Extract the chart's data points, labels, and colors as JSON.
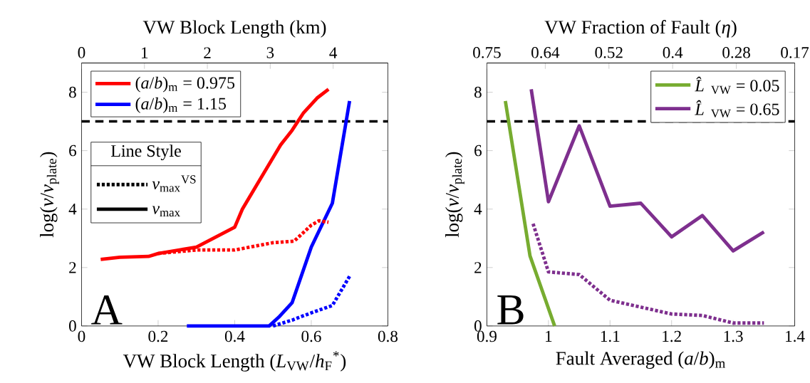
{
  "chart_data": [
    {
      "type": "line",
      "xlabel": "VW Block Length (*L*$_{VW}$/*h*$_{F}$$^{*}$)",
      "ylabel": "log(*v*/*v*$_{plate}$)",
      "x2label": "VW Block Length (km)",
      "xlim": [
        0,
        0.8
      ],
      "xticks": [
        0,
        0.2,
        0.4,
        0.6,
        0.8
      ],
      "ylim": [
        0,
        9
      ],
      "yticks": [
        0,
        2,
        4,
        6,
        8
      ],
      "x2lim": [
        0,
        4.87
      ],
      "x2ticks": [
        0,
        1,
        2,
        3,
        4
      ],
      "legend": "top left",
      "marker": "none",
      "grid": false,
      "ref_lines": [
        {
          "axis": "y",
          "value": 7,
          "color": "#000000",
          "line_style": "dashed"
        }
      ],
      "annotations": [
        "A",
        "Line Style",
        "*v*$_{max}$$^{VS}$",
        "*v*$_{max}$"
      ],
      "series": [
        {
          "name": "(*a*/*b*)$_{m}$ = 0.975",
          "color": "#ff0000",
          "line_style": "solid",
          "x": [
            0.05,
            0.1,
            0.175,
            0.2,
            0.3,
            0.4,
            0.42,
            0.52,
            0.55,
            0.58,
            0.615,
            0.645
          ],
          "values": [
            2.28,
            2.35,
            2.38,
            2.48,
            2.7,
            3.38,
            4.0,
            6.2,
            6.7,
            7.3,
            7.8,
            8.1
          ]
        },
        {
          "name": "(*a*/*b*)$_{m}$ = 1.15",
          "color": "#0000ff",
          "line_style": "solid",
          "x": [
            0.275,
            0.49,
            0.515,
            0.55,
            0.6,
            0.655,
            0.7
          ],
          "values": [
            0,
            0,
            0.3,
            0.8,
            2.7,
            4.2,
            7.7
          ]
        },
        {
          "color": "#ff0000",
          "line_style": "dotted",
          "x": [
            0.2,
            0.3,
            0.4,
            0.5,
            0.555,
            0.6,
            0.62,
            0.645
          ],
          "values": [
            2.48,
            2.6,
            2.6,
            2.85,
            2.9,
            3.45,
            3.6,
            3.55
          ]
        },
        {
          "color": "#0000ff",
          "line_style": "dotted",
          "x": [
            0.5,
            0.55,
            0.6,
            0.655,
            0.7
          ],
          "values": [
            0,
            0.2,
            0.45,
            0.7,
            1.7
          ]
        }
      ]
    },
    {
      "type": "line",
      "xlabel": "Fault Averaged (*a*/*b*)$_{m}$",
      "ylabel": "log(*v*/*v*$_{plate}$)",
      "x2label": "VW Fraction of Fault (*η*)",
      "xlim": [
        0.9,
        1.4
      ],
      "xticks": [
        0.9,
        1,
        1.1,
        1.2,
        1.3,
        1.4
      ],
      "ylim": [
        0,
        9
      ],
      "yticks": [
        0,
        2,
        4,
        6,
        8
      ],
      "x2lim": [
        0.75,
        0.17
      ],
      "x2ticks": [
        0.75,
        0.64,
        0.52,
        0.4,
        0.28,
        0.17
      ],
      "legend": "top right",
      "marker": "none",
      "grid": false,
      "ref_lines": [
        {
          "axis": "y",
          "value": 7,
          "color": "#000000",
          "line_style": "dashed"
        }
      ],
      "annotations": [
        "B"
      ],
      "series": [
        {
          "name": "*L̂*$_{VW}$ = 0.05",
          "color": "#77ac30",
          "line_style": "solid",
          "x": [
            0.93,
            0.97,
            1.01
          ],
          "values": [
            7.7,
            2.4,
            0
          ]
        },
        {
          "name": "*L̂*$_{VW}$ = 0.65",
          "color": "#7e2f8e",
          "line_style": "solid",
          "x": [
            0.972,
            1.0,
            1.05,
            1.1,
            1.15,
            1.2,
            1.25,
            1.3,
            1.35
          ],
          "values": [
            8.1,
            4.25,
            6.85,
            4.1,
            4.2,
            3.05,
            3.78,
            2.57,
            3.22
          ]
        },
        {
          "color": "#7e2f8e",
          "line_style": "dotted",
          "x": [
            0.975,
            1.0,
            1.05,
            1.1,
            1.2,
            1.25,
            1.3,
            1.35
          ],
          "values": [
            3.5,
            1.85,
            1.76,
            0.88,
            0.41,
            0.36,
            0.1,
            0.1
          ]
        }
      ]
    }
  ]
}
